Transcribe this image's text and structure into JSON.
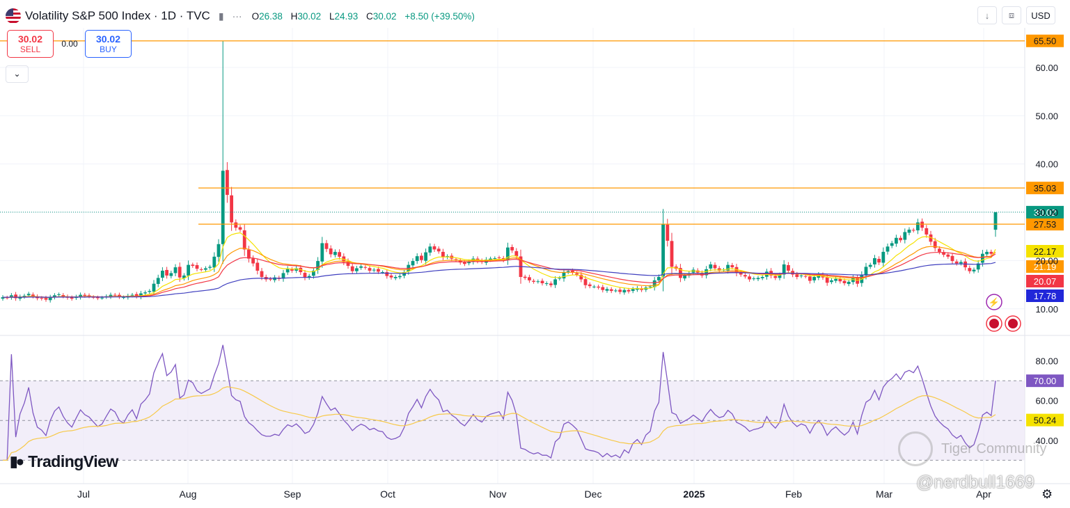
{
  "header": {
    "symbol_title": "Volatility S&P 500 Index · 1D · TVC",
    "ohlc": {
      "o_label": "O",
      "o": "26.38",
      "h_label": "H",
      "h": "30.02",
      "l_label": "L",
      "l": "24.93",
      "c_label": "C",
      "c": "30.02",
      "change": "+8.50 (+39.50%)"
    },
    "more_icon": "ellipsis-icon",
    "flag_icon": "us-flag-icon"
  },
  "trade": {
    "sell_price": "30.02",
    "sell_label": "SELL",
    "spread": "0.00",
    "buy_price": "30.02",
    "buy_label": "BUY"
  },
  "toolbar": {
    "currency": "USD",
    "collapse_icon": "chevron-down-icon",
    "download_icon": "arrow-down-icon",
    "fullscreen_icon": "expand-icon"
  },
  "branding": {
    "logo_text": "TradingView",
    "watermark_community": "Tiger Community",
    "watermark_user": "@nerdbull1669"
  },
  "colors": {
    "up": "#089981",
    "down": "#f23645",
    "ma_yellow": "#f5e200",
    "ma_orange": "#ff9800",
    "ma_red": "#f23645",
    "ma_blue": "#3f3fbf",
    "hline": "#ff9800",
    "rsi": "#7e57c2",
    "rsi_ma": "#f7c948",
    "rsi_band": "#ede7f6"
  },
  "chart_data": {
    "type": "candlestick",
    "price_axis": {
      "ticks": [
        "10.00",
        "20.00",
        "30.00",
        "40.00",
        "50.00",
        "60.00"
      ],
      "range": [
        5.5,
        68.2
      ]
    },
    "time_axis": {
      "labels": [
        "Jul",
        "Aug",
        "Sep",
        "Oct",
        "Nov",
        "Dec",
        "2025",
        "Feb",
        "Mar",
        "Apr"
      ]
    },
    "horizontal_lines": [
      {
        "value": 65.5,
        "label": "65.50"
      },
      {
        "value": 35.03,
        "label": "35.03"
      },
      {
        "value": 27.53,
        "label": "27.53"
      }
    ],
    "last_price": {
      "value": 30.02,
      "label": "30.02"
    },
    "ma_labels": [
      {
        "value": 22.17,
        "label": "22.17",
        "color": "#f5e200"
      },
      {
        "value": 21.19,
        "label": "21.19",
        "color": "#ff9800"
      },
      {
        "value": 20.07,
        "label": "20.07",
        "color": "#f23645"
      },
      {
        "value": 17.78,
        "label": "17.78",
        "color": "#2127d9"
      }
    ],
    "closes": [
      12.4,
      12.3,
      12.8,
      12.2,
      12.5,
      12.7,
      13.1,
      12.6,
      12.2,
      12.1,
      11.9,
      12.4,
      12.8,
      13.0,
      12.6,
      12.3,
      12.1,
      12.5,
      12.9,
      12.7,
      12.6,
      12.4,
      12.2,
      12.3,
      12.6,
      12.9,
      12.8,
      12.5,
      12.4,
      12.7,
      12.9,
      12.6,
      13.2,
      13.4,
      13.7,
      15.2,
      16.4,
      17.9,
      16.9,
      17.4,
      18.6,
      16.5,
      16.9,
      19.1,
      18.9,
      18.3,
      18.1,
      18.4,
      18.7,
      20.8,
      23.4,
      38.6,
      33.6,
      27.9,
      26.8,
      26.4,
      22.3,
      20.4,
      19.4,
      17.9,
      16.6,
      16.1,
      16.1,
      16.5,
      16.2,
      17.4,
      18.3,
      17.9,
      18.4,
      17.6,
      16.5,
      16.8,
      17.9,
      19.9,
      23.6,
      22.4,
      21.3,
      21.8,
      20.8,
      19.7,
      18.9,
      17.8,
      18.4,
      18.8,
      18.5,
      17.9,
      18.1,
      17.7,
      17.6,
      16.8,
      16.5,
      16.6,
      16.8,
      17.6,
      19.1,
      19.9,
      20.9,
      20.1,
      21.7,
      22.9,
      22.3,
      21.9,
      20.7,
      20.9,
      20.4,
      20.1,
      19.6,
      19.3,
      19.8,
      20.4,
      19.9,
      19.7,
      20.2,
      20.4,
      20.5,
      20.6,
      20.1,
      22.7,
      22.1,
      20.9,
      16.6,
      16.4,
      15.9,
      15.6,
      15.7,
      15.3,
      15.3,
      14.9,
      16.1,
      16.4,
      17.6,
      17.8,
      17.5,
      17.1,
      16.1,
      14.9,
      14.7,
      14.6,
      14.4,
      13.9,
      14.1,
      13.7,
      13.8,
      13.5,
      13.9,
      13.6,
      14.1,
      14.3,
      13.9,
      14.4,
      14.6,
      15.9,
      16.6,
      27.6,
      24.1,
      18.7,
      18.3,
      16.4,
      16.9,
      17.4,
      18.1,
      17.5,
      16.9,
      18.2,
      19.2,
      18.4,
      17.9,
      18.1,
      19.1,
      18.6,
      17.4,
      17.1,
      16.7,
      16.1,
      16.3,
      16.4,
      16.6,
      17.7,
      16.9,
      16.4,
      17.0,
      19.2,
      17.9,
      17.1,
      16.6,
      16.9,
      16.7,
      15.8,
      16.6,
      17.1,
      16.5,
      15.4,
      15.9,
      16.2,
      15.7,
      15.3,
      15.6,
      16.4,
      15.2,
      17.0,
      18.7,
      19.1,
      20.5,
      19.6,
      21.8,
      22.9,
      23.6,
      24.7,
      24.2,
      25.9,
      26.4,
      26.2,
      27.9,
      26.8,
      25.4,
      23.9,
      22.6,
      21.8,
      21.2,
      20.8,
      19.9,
      19.4,
      19.7,
      18.6,
      17.8,
      18.1,
      19.4,
      21.4,
      21.8,
      21.4,
      30.02
    ]
  },
  "rsi": {
    "axis_ticks": [
      "40.00",
      "60.00",
      "80.00"
    ],
    "upper_band": {
      "value": 70,
      "label": "70.00"
    },
    "lower_band": 30,
    "mid": 50,
    "rsi_ma_label": {
      "value": 50.24,
      "label": "50.24"
    }
  }
}
